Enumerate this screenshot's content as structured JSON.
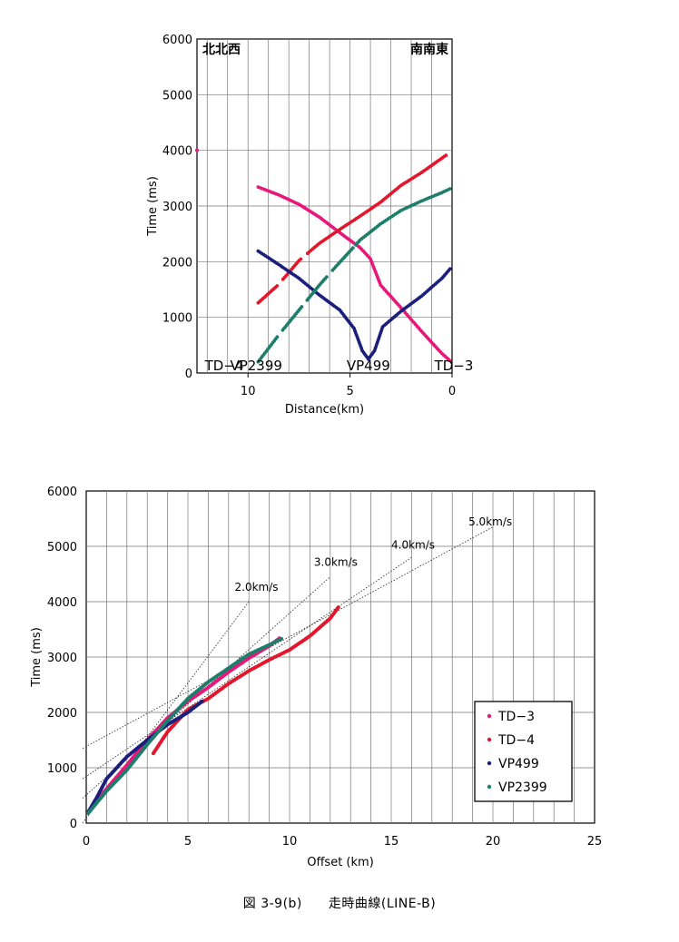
{
  "caption": "図 3-9(b)　　走時曲線(LINE-B)",
  "chart_data": [
    {
      "type": "line",
      "title": "",
      "xlabel": "Distance(km)",
      "ylabel": "Time (ms)",
      "xlim": [
        12.5,
        0
      ],
      "ylim": [
        0,
        6000
      ],
      "x_ticks": [
        "10",
        "5",
        "0"
      ],
      "y_ticks": [
        "0",
        "1000",
        "2000",
        "3000",
        "4000",
        "5000",
        "6000"
      ],
      "grid": true,
      "direction_labels": {
        "left": "北北西",
        "right": "南南東"
      },
      "source_labels": [
        {
          "label": "TD−4",
          "x": 12.5
        },
        {
          "label": "VP2399",
          "x": 9.6
        },
        {
          "label": "VP499",
          "x": 4.1
        },
        {
          "label": "TD−3",
          "x": 0
        }
      ],
      "series": [
        {
          "name": "TD-3",
          "color": "#e8177a",
          "x": [
            9.5,
            8.5,
            7.5,
            6.5,
            5.5,
            4.5,
            4.0,
            3.5,
            2.5,
            1.5,
            0.5,
            0.1
          ],
          "y": [
            3340,
            3200,
            3030,
            2800,
            2520,
            2250,
            2050,
            1580,
            1170,
            750,
            350,
            220
          ]
        },
        {
          "name": "TD-4",
          "color": "#e3162c",
          "x": [
            9.5,
            8.5,
            7.5,
            6.5,
            5.5,
            4.5,
            3.5,
            2.5,
            1.5,
            0.3
          ],
          "y": [
            1260,
            1590,
            2020,
            2330,
            2580,
            2820,
            3070,
            3370,
            3600,
            3910
          ]
        },
        {
          "name": "VP499",
          "color": "#1b1f7c",
          "x": [
            9.5,
            8.5,
            7.5,
            6.5,
            5.5,
            4.8,
            4.4,
            4.1,
            3.8,
            3.4,
            2.5,
            1.5,
            0.5,
            0.1
          ],
          "y": [
            2190,
            1950,
            1700,
            1400,
            1130,
            800,
            400,
            250,
            400,
            830,
            1110,
            1380,
            1700,
            1870
          ]
        },
        {
          "name": "VP2399",
          "color": "#1f7d6b",
          "x": [
            9.5,
            8.5,
            7.5,
            6.5,
            5.5,
            4.5,
            3.5,
            2.5,
            1.5,
            0.5,
            0.1
          ],
          "y": [
            200,
            680,
            1130,
            1580,
            1990,
            2390,
            2680,
            2920,
            3090,
            3240,
            3310
          ]
        }
      ]
    },
    {
      "type": "scatter",
      "title": "",
      "xlabel": "Offset (km)",
      "ylabel": "Time (ms)",
      "xlim": [
        0,
        25
      ],
      "ylim": [
        0,
        6000
      ],
      "x_ticks": [
        "0",
        "5",
        "10",
        "15",
        "20",
        "25"
      ],
      "y_ticks": [
        "0",
        "1000",
        "2000",
        "3000",
        "4000",
        "5000",
        "6000"
      ],
      "grid": true,
      "legend": "lower-right",
      "series": [
        {
          "name": "TD−3",
          "color": "#e8177a",
          "x": [
            0.1,
            1.0,
            2.0,
            3.0,
            4.0,
            5.0,
            6.0,
            7.0,
            8.0,
            9.0,
            9.5
          ],
          "y": [
            200,
            620,
            1050,
            1500,
            1900,
            2200,
            2450,
            2730,
            2980,
            3200,
            3340
          ]
        },
        {
          "name": "TD−4",
          "color": "#e3162c",
          "x": [
            3.3,
            4.0,
            5.0,
            6.0,
            7.0,
            8.0,
            9.0,
            10.0,
            11.0,
            12.0,
            12.4
          ],
          "y": [
            1260,
            1650,
            2050,
            2250,
            2520,
            2750,
            2950,
            3130,
            3380,
            3700,
            3900
          ]
        },
        {
          "name": "VP499",
          "color": "#1b1f7c",
          "x": [
            0.1,
            0.5,
            1.0,
            2.0,
            3.0,
            4.0,
            5.0,
            5.7
          ],
          "y": [
            200,
            450,
            800,
            1200,
            1500,
            1780,
            2000,
            2200
          ]
        },
        {
          "name": "VP2399",
          "color": "#1f7d6b",
          "x": [
            0.1,
            1.0,
            2.0,
            3.0,
            4.0,
            5.0,
            6.0,
            7.0,
            8.0,
            9.0,
            9.6
          ],
          "y": [
            180,
            580,
            960,
            1420,
            1850,
            2250,
            2550,
            2800,
            3050,
            3220,
            3330
          ]
        }
      ],
      "velocity_lines": [
        {
          "label": "2.0km/s",
          "intercept": 0,
          "slope": 500,
          "x_end": 8.0
        },
        {
          "label": "3.0km/s",
          "intercept": 450,
          "slope": 333.3,
          "x_end": 12.0
        },
        {
          "label": "4.0km/s",
          "intercept": 800,
          "slope": 250,
          "x_end": 16.0
        },
        {
          "label": "5.0km/s",
          "intercept": 1350,
          "slope": 200,
          "x_end": 20.0
        }
      ]
    }
  ]
}
